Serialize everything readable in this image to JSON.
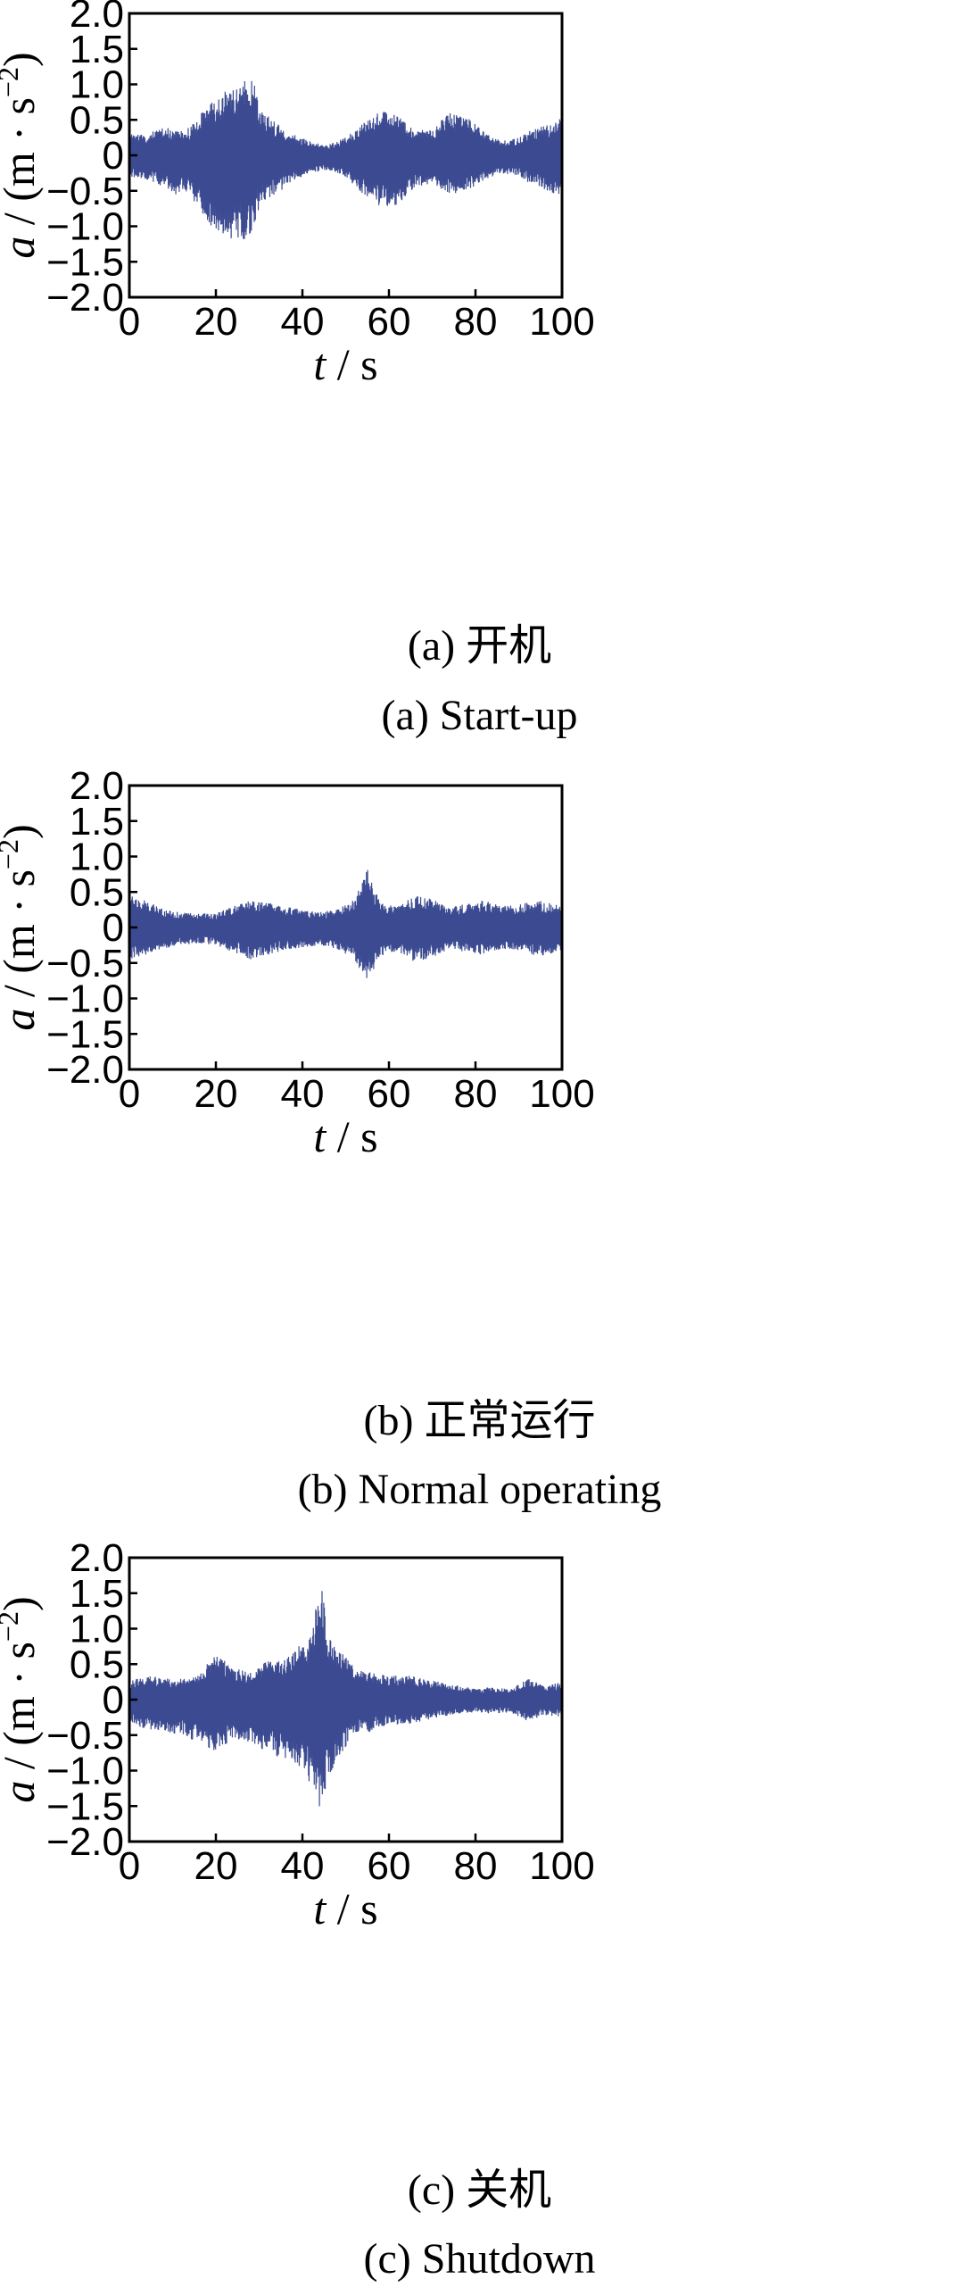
{
  "chart_data": [
    {
      "type": "line",
      "caption_cn": "(a)  开机",
      "caption_en": "(a)  Start-up",
      "xlabel_var": "t",
      "xlabel_unit": " / s",
      "ylabel_var": "a",
      "ylabel_unit": " / (m · s",
      "ylabel_exp": "−2",
      "ylabel_close": ")",
      "xlim": [
        0,
        100
      ],
      "ylim": [
        -2.0,
        2.0
      ],
      "xticks": [
        "0",
        "20",
        "40",
        "60",
        "80",
        "100"
      ],
      "yticks": [
        "2.0",
        "1.5",
        "1.0",
        "0.5",
        "0",
        "−0.5",
        "−1.0",
        "−1.5",
        "−2.0"
      ],
      "series_color": "#3b4a91",
      "envelope": {
        "t": [
          0,
          4,
          8,
          10,
          14,
          18,
          22,
          26,
          28,
          30,
          34,
          38,
          42,
          46,
          50,
          54,
          58,
          62,
          66,
          70,
          74,
          78,
          82,
          86,
          90,
          94,
          98,
          100
        ],
        "upper": [
          0.3,
          0.3,
          0.45,
          0.35,
          0.4,
          0.7,
          0.9,
          0.95,
          1.25,
          0.7,
          0.45,
          0.3,
          0.2,
          0.15,
          0.25,
          0.45,
          0.62,
          0.6,
          0.35,
          0.38,
          0.6,
          0.55,
          0.35,
          0.2,
          0.25,
          0.4,
          0.45,
          0.55
        ],
        "lower": [
          -0.3,
          -0.35,
          -0.45,
          -0.55,
          -0.55,
          -0.95,
          -1.15,
          -1.2,
          -1.15,
          -0.75,
          -0.55,
          -0.35,
          -0.25,
          -0.2,
          -0.3,
          -0.55,
          -0.75,
          -0.7,
          -0.45,
          -0.4,
          -0.55,
          -0.5,
          -0.35,
          -0.25,
          -0.3,
          -0.45,
          -0.55,
          -0.6
        ]
      }
    },
    {
      "type": "line",
      "caption_cn": "(b)  正常运行",
      "caption_en": "(b)  Normal operating",
      "xlabel_var": "t",
      "xlabel_unit": " / s",
      "ylabel_var": "a",
      "ylabel_unit": " / (m · s",
      "ylabel_exp": "−2",
      "ylabel_close": ")",
      "xlim": [
        0,
        100
      ],
      "ylim": [
        -2.0,
        2.0
      ],
      "xticks": [
        "0",
        "20",
        "40",
        "60",
        "80",
        "100"
      ],
      "yticks": [
        "2.0",
        "1.5",
        "1.0",
        "0.5",
        "0",
        "−0.5",
        "−1.0",
        "−1.5",
        "−2.0"
      ],
      "series_color": "#3b4a91",
      "envelope": {
        "t": [
          0,
          4,
          8,
          12,
          16,
          20,
          24,
          28,
          32,
          36,
          40,
          44,
          48,
          52,
          55,
          58,
          62,
          66,
          70,
          74,
          78,
          82,
          86,
          90,
          94,
          98,
          100
        ],
        "upper": [
          0.45,
          0.38,
          0.25,
          0.22,
          0.2,
          0.2,
          0.3,
          0.38,
          0.35,
          0.3,
          0.25,
          0.22,
          0.25,
          0.4,
          0.82,
          0.35,
          0.3,
          0.45,
          0.4,
          0.28,
          0.35,
          0.38,
          0.3,
          0.32,
          0.38,
          0.35,
          0.3
        ],
        "lower": [
          -0.45,
          -0.38,
          -0.3,
          -0.25,
          -0.22,
          -0.25,
          -0.35,
          -0.45,
          -0.4,
          -0.32,
          -0.28,
          -0.25,
          -0.3,
          -0.45,
          -0.78,
          -0.4,
          -0.35,
          -0.5,
          -0.42,
          -0.3,
          -0.35,
          -0.4,
          -0.3,
          -0.32,
          -0.4,
          -0.38,
          -0.35
        ]
      }
    },
    {
      "type": "line",
      "caption_cn": "(c)  关机",
      "caption_en": "(c)  Shutdown",
      "xlabel_var": "t",
      "xlabel_unit": " / s",
      "ylabel_var": "a",
      "ylabel_unit": " / (m · s",
      "ylabel_exp": "−2",
      "ylabel_close": ")",
      "xlim": [
        0,
        100
      ],
      "ylim": [
        -2.0,
        2.0
      ],
      "xticks": [
        "0",
        "20",
        "40",
        "60",
        "80",
        "100"
      ],
      "yticks": [
        "2.0",
        "1.5",
        "1.0",
        "0.5",
        "0",
        "−0.5",
        "−1.0",
        "−1.5",
        "−2.0"
      ],
      "series_color": "#3b4a91",
      "envelope": {
        "t": [
          0,
          4,
          8,
          12,
          16,
          20,
          24,
          28,
          32,
          36,
          40,
          42,
          44,
          46,
          48,
          52,
          56,
          60,
          64,
          68,
          72,
          76,
          80,
          84,
          88,
          92,
          96,
          100
        ],
        "upper": [
          0.25,
          0.35,
          0.3,
          0.3,
          0.35,
          0.65,
          0.45,
          0.4,
          0.55,
          0.6,
          0.8,
          0.9,
          1.75,
          0.95,
          0.75,
          0.45,
          0.4,
          0.35,
          0.35,
          0.3,
          0.25,
          0.2,
          0.15,
          0.18,
          0.15,
          0.3,
          0.2,
          0.25
        ],
        "lower": [
          -0.3,
          -0.45,
          -0.45,
          -0.5,
          -0.6,
          -0.75,
          -0.55,
          -0.6,
          -0.75,
          -0.85,
          -1.0,
          -1.2,
          -1.55,
          -1.1,
          -0.85,
          -0.5,
          -0.45,
          -0.35,
          -0.35,
          -0.3,
          -0.25,
          -0.2,
          -0.18,
          -0.2,
          -0.18,
          -0.3,
          -0.22,
          -0.25
        ]
      }
    }
  ]
}
